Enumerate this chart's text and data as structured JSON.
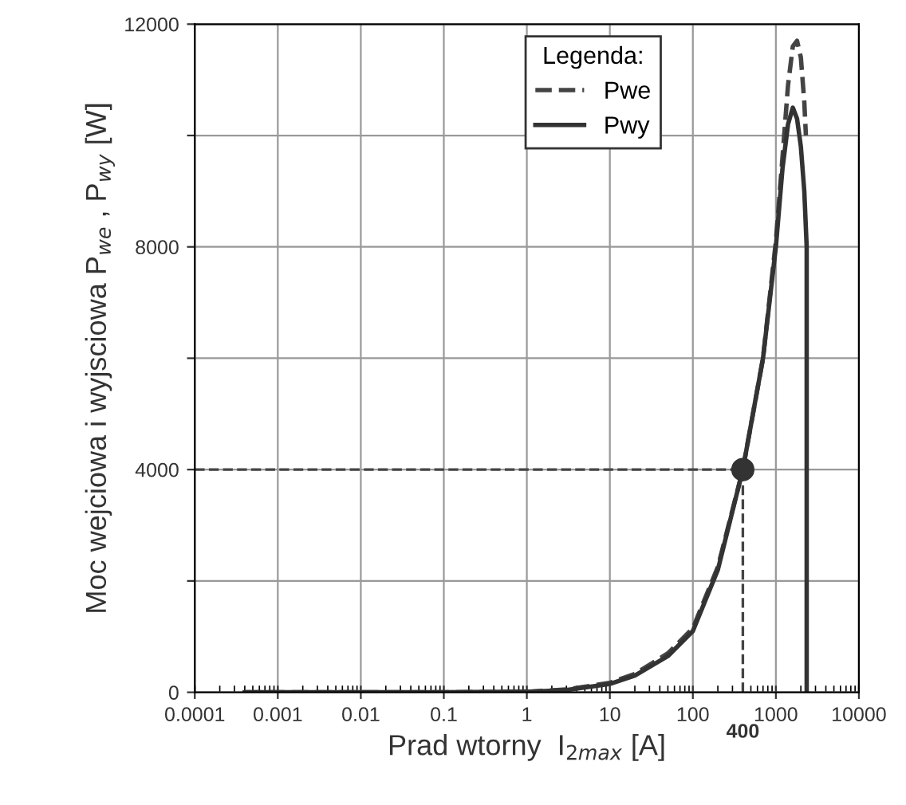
{
  "chart_data": {
    "type": "line",
    "xlabel": "Prad wtorny  I$_{2max}$ [A]",
    "ylabel": "Moc wejciowa i wyjsciowa P$_{we}$ , P$_{wy}$ [W]",
    "legend_title": "Legenda:",
    "log": "x",
    "xlim": [
      0.0001,
      10000
    ],
    "xticks": [
      0.0001,
      0.001,
      0.01,
      0.1,
      1,
      10,
      100,
      1000,
      10000
    ],
    "ylim": [
      0,
      12000
    ],
    "yticks": [
      0,
      {
        "value": 2000,
        "label": null
      },
      4000,
      {
        "value": 6000,
        "label": null
      },
      8000,
      {
        "value": 10000,
        "label": null
      },
      12000
    ],
    "grid": true,
    "legend": "top right",
    "series": [
      {
        "name": "Pwe",
        "color": "#444444",
        "line_style": "dashed",
        "x": [
          0.0004,
          0.001,
          0.01,
          0.1,
          1,
          3,
          10,
          20,
          50,
          100,
          200,
          400,
          700,
          1000,
          1200,
          1400,
          1600,
          1800,
          2000,
          2200,
          2300
        ],
        "values": [
          0,
          0,
          0,
          0,
          10,
          50,
          170,
          330,
          700,
          1150,
          2250,
          4000,
          6000,
          8100,
          9600,
          10900,
          11600,
          11700,
          11400,
          10600,
          10000
        ]
      },
      {
        "name": "Pwy",
        "color": "#333333",
        "line_style": "solid",
        "x": [
          0.0004,
          0.001,
          0.01,
          0.1,
          1,
          3,
          10,
          20,
          50,
          100,
          200,
          400,
          700,
          1000,
          1200,
          1400,
          1600,
          1800,
          2000,
          2200,
          2350,
          2350
        ],
        "values": [
          0,
          0,
          0,
          0,
          10,
          40,
          150,
          300,
          650,
          1100,
          2200,
          4000,
          6000,
          8000,
          9400,
          10200,
          10500,
          10300,
          9800,
          9000,
          8000,
          0
        ]
      },
      {
        "type": "scatter",
        "color": "#333333",
        "marker": "circle",
        "x": [
          400
        ],
        "values": [
          4000
        ]
      }
    ],
    "ref_lines": [
      {
        "axis": "y",
        "value": 4000,
        "line_style": "dashed",
        "color": "#444444"
      },
      {
        "axis": "x",
        "value": 400,
        "label": "400",
        "line_style": "dashed",
        "color": "#444444"
      }
    ]
  }
}
